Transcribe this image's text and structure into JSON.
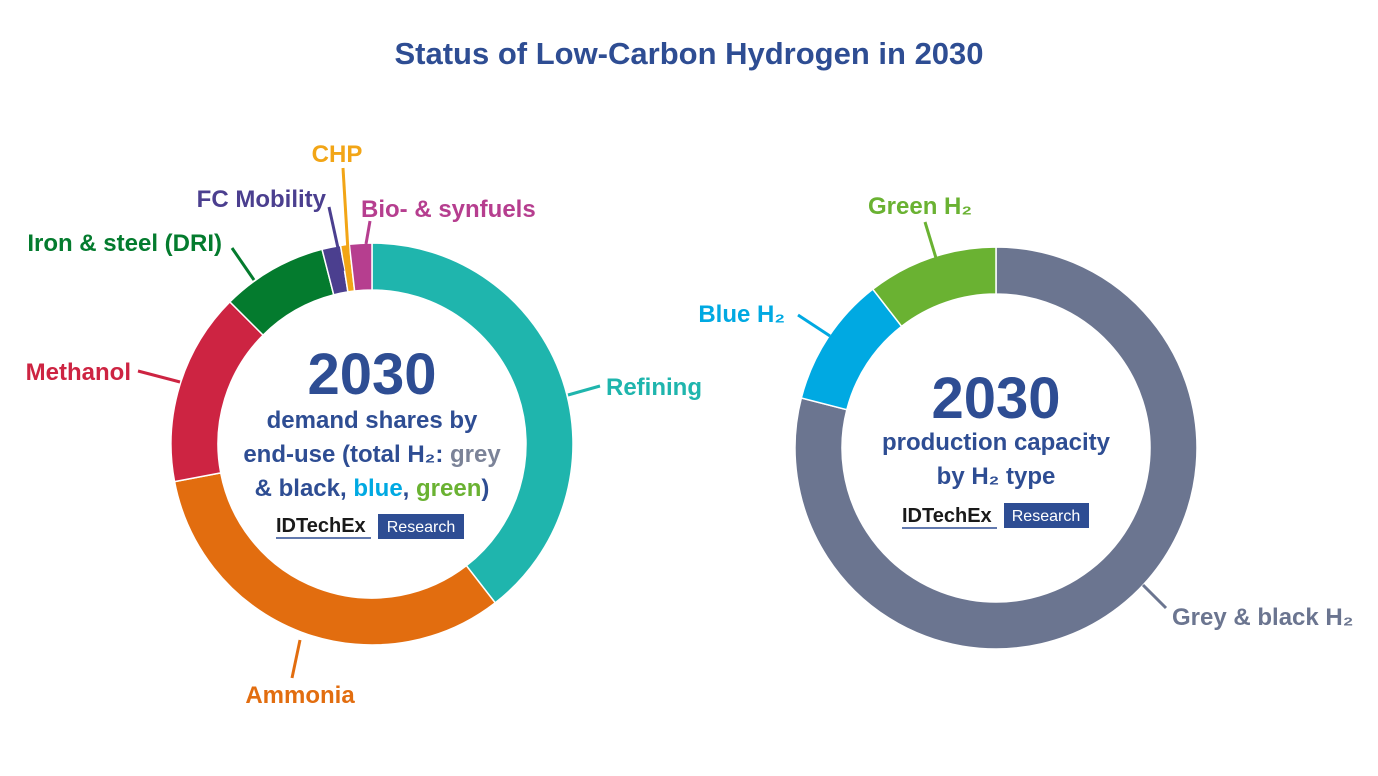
{
  "title": "Status of Low-Carbon Hydrogen in 2030",
  "chart_data": [
    {
      "type": "pie",
      "subtype": "donut",
      "center_year": "2030",
      "center_lines": [
        "demand shares by",
        "end-use (total H₂: grey"
      ],
      "center_line3": {
        "prefix": "& black, ",
        "blue": "blue",
        "sep": ", ",
        "green": "green",
        "suffix": ")"
      },
      "brand": "IDTechEx",
      "brand_tag": "Research",
      "categories": [
        "Refining",
        "Ammonia",
        "Methanol",
        "Iron & steel (DRI)",
        "FC Mobility",
        "CHP",
        "Bio- & synfuels"
      ],
      "values": [
        39.5,
        32.5,
        15.5,
        8.5,
        1.5,
        0.7,
        1.8
      ],
      "colors": [
        "#1fb5ad",
        "#e26d0f",
        "#cd2442",
        "#047b2e",
        "#4b3f8f",
        "#f2a516",
        "#b63e8f"
      ],
      "unit": "percent (estimated)"
    },
    {
      "type": "pie",
      "subtype": "donut",
      "center_year": "2030",
      "center_lines": [
        "production capacity",
        "by H₂ type"
      ],
      "brand": "IDTechEx",
      "brand_tag": "Research",
      "categories": [
        "Grey & black H₂",
        "Blue H₂",
        "Green H₂"
      ],
      "values": [
        79,
        10.5,
        10.5
      ],
      "colors": [
        "#6b7590",
        "#00a9e2",
        "#6ab232"
      ],
      "unit": "percent (estimated)"
    }
  ],
  "colors": {
    "title": "#2e4d93",
    "grey_text": "#7b8398",
    "blue_text": "#00a9e2",
    "green_text": "#6ab232",
    "brand_box": "#2e4d93"
  }
}
